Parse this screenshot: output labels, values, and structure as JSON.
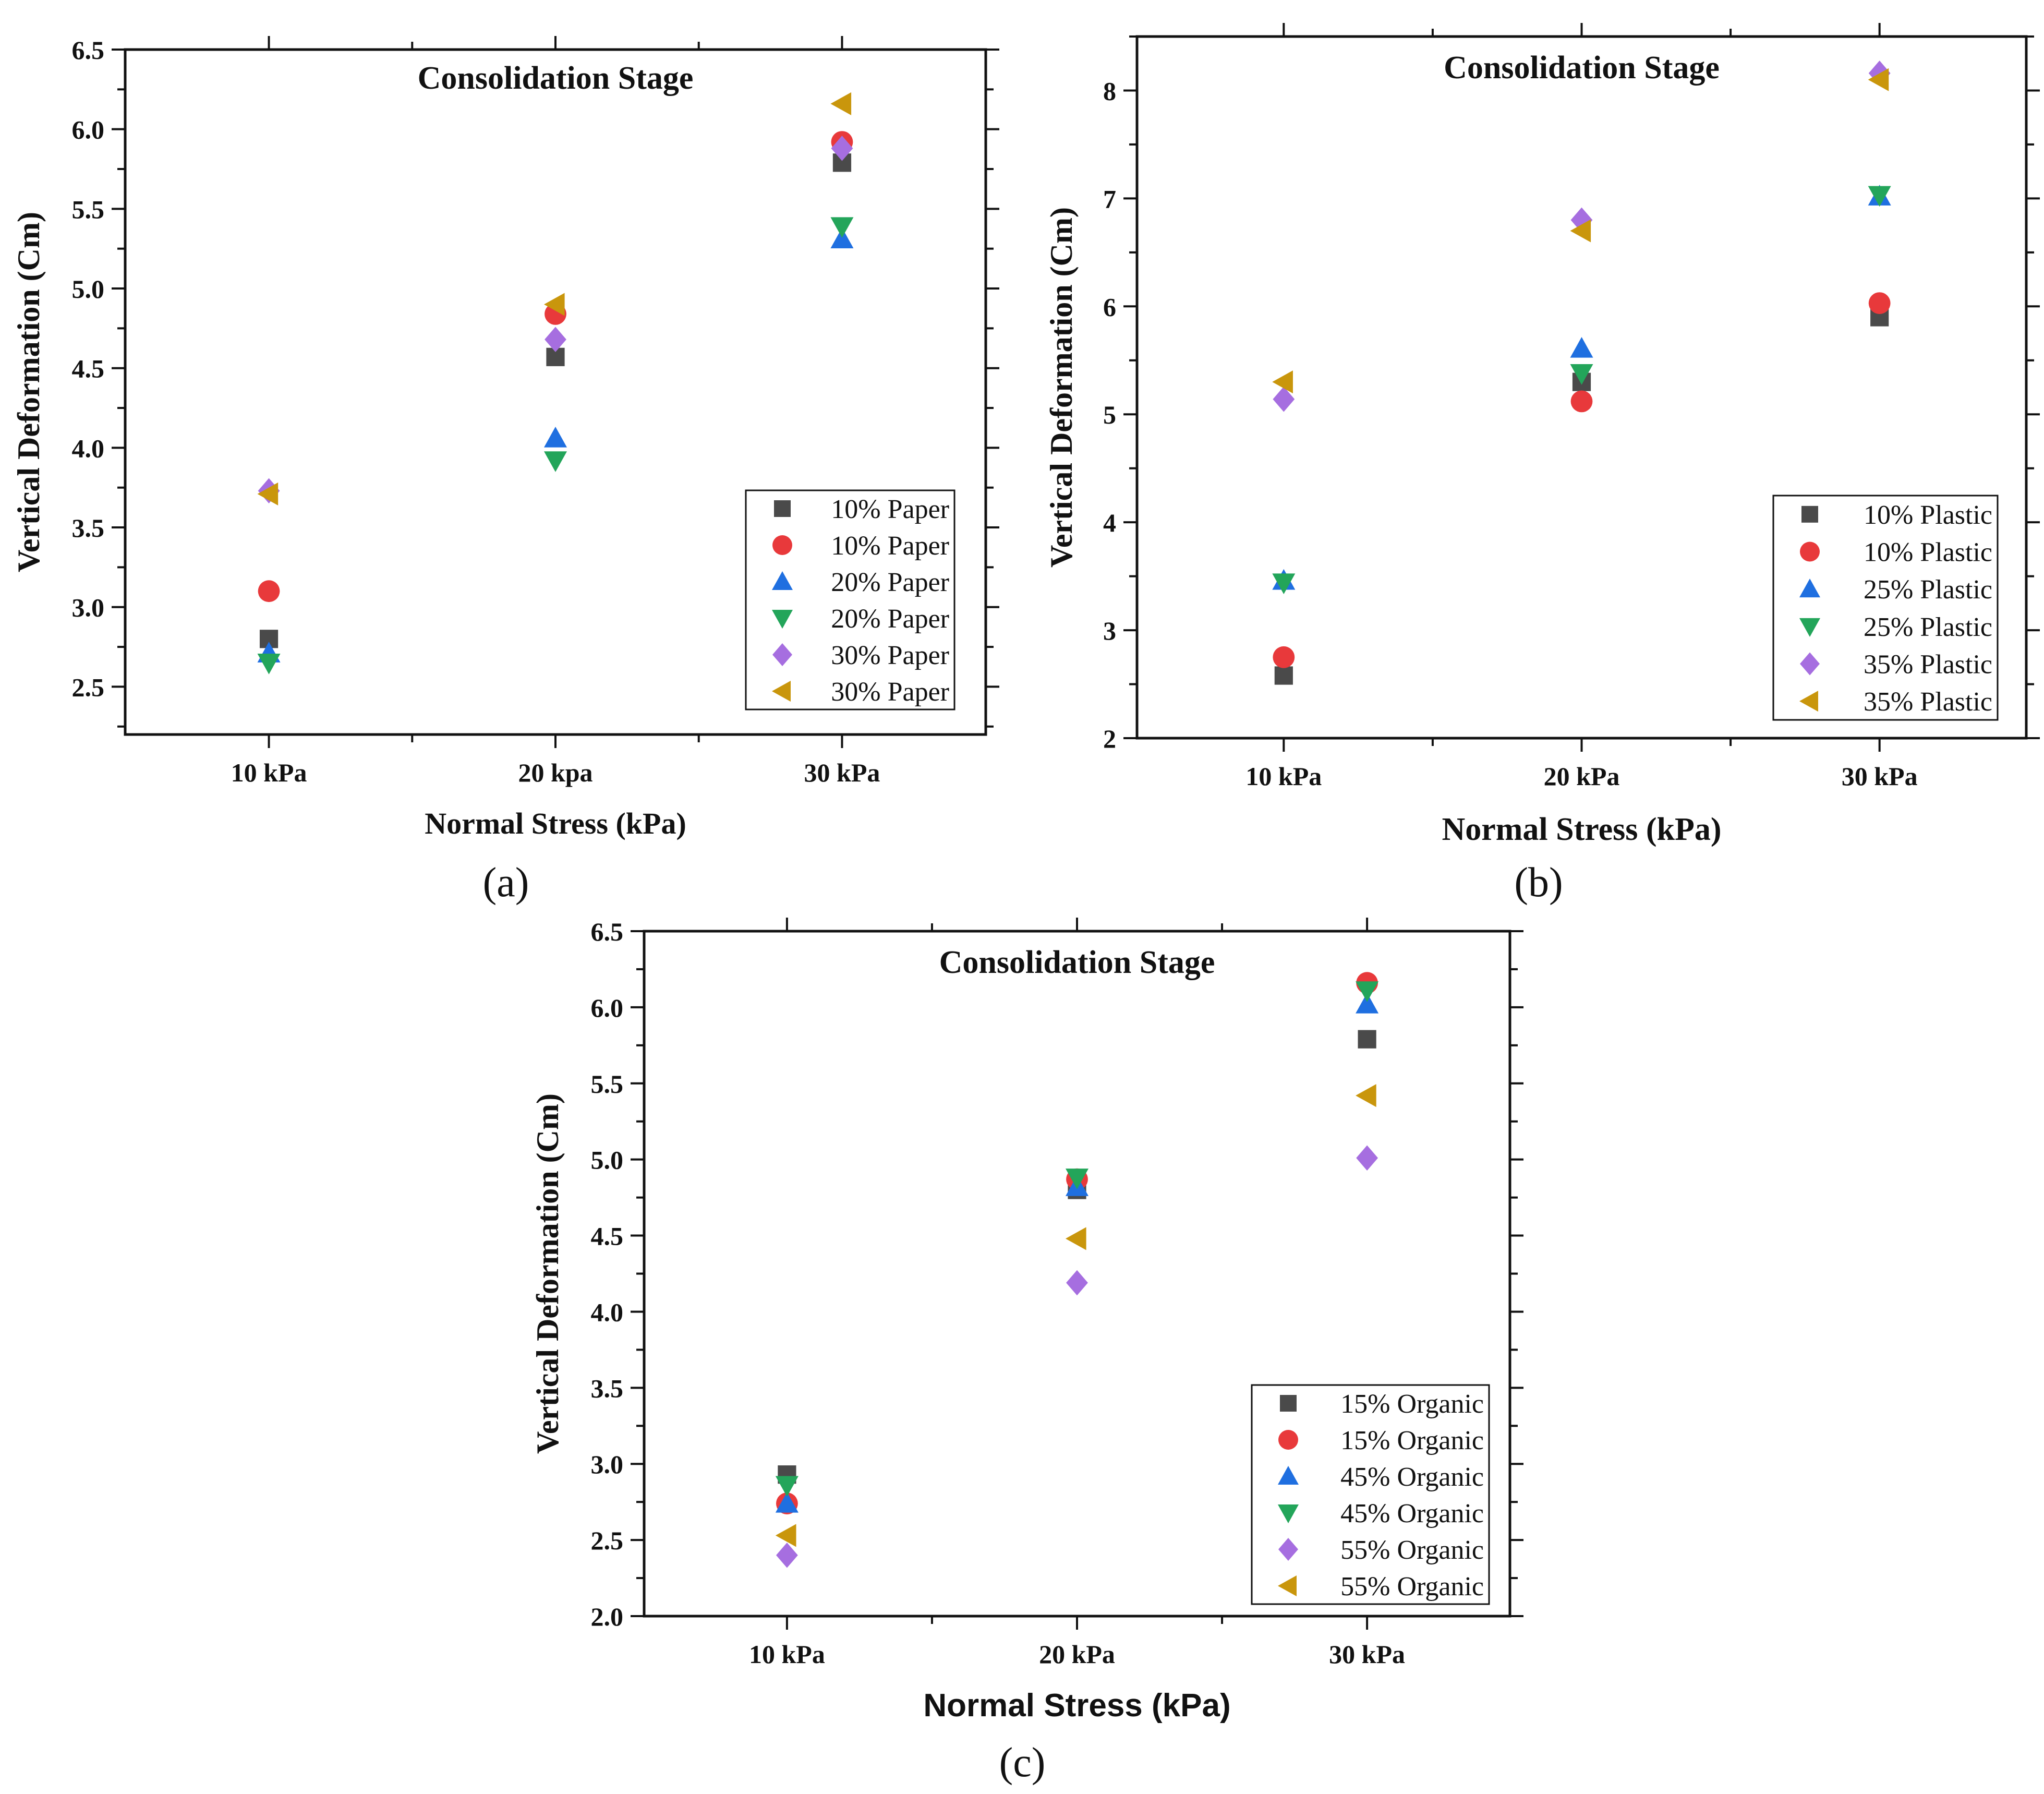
{
  "figure": {
    "panels": [
      {
        "caption": "(a)"
      },
      {
        "caption": "(b)"
      },
      {
        "caption": "(c)"
      }
    ]
  },
  "colors": {
    "square": "#4a4a4a",
    "circle": "#e8393b",
    "triangle-up": "#1f6fe0",
    "triangle-down": "#23a55a",
    "diamond": "#a66ee0",
    "triangle-left": "#c9960c"
  },
  "chart_data": [
    {
      "type": "scatter",
      "title": "Consolidation Stage",
      "xlabel": "Normal Stress (kPa)",
      "ylabel": "Vertical Deformation (Cm)",
      "categories": [
        "10 kPa",
        "20 kpa",
        "30 kPa"
      ],
      "ylim": [
        2.2,
        6.5
      ],
      "yticks": [
        "2.5",
        "3.0",
        "3.5",
        "4.0",
        "4.5",
        "5.0",
        "5.5",
        "6.0",
        "6.5"
      ],
      "grid": false,
      "legend": "bottom-right",
      "series": [
        {
          "name": "10% Paper",
          "marker": "square",
          "values": [
            2.8,
            4.57,
            5.79
          ]
        },
        {
          "name": "10% Paper",
          "marker": "circle",
          "values": [
            3.1,
            4.84,
            5.92
          ]
        },
        {
          "name": "20% Paper",
          "marker": "triangle-up",
          "values": [
            2.71,
            4.06,
            5.31
          ]
        },
        {
          "name": "20% Paper",
          "marker": "triangle-down",
          "values": [
            2.65,
            3.92,
            5.39
          ]
        },
        {
          "name": "30% Paper",
          "marker": "diamond",
          "values": [
            3.73,
            4.68,
            5.88
          ]
        },
        {
          "name": "30% Paper",
          "marker": "triangle-left",
          "values": [
            3.71,
            4.9,
            6.16
          ]
        }
      ]
    },
    {
      "type": "scatter",
      "title": "Consolidation Stage",
      "xlabel": "Normal Stress (kPa)",
      "ylabel": "Vertical Deformation (Cm)",
      "categories": [
        "10 kPa",
        "20 kPa",
        "30 kPa"
      ],
      "ylim": [
        2.0,
        8.5
      ],
      "yticks": [
        "2",
        "3",
        "4",
        "5",
        "6",
        "7",
        "8"
      ],
      "grid": false,
      "legend": "bottom-right",
      "series": [
        {
          "name": "10% Plastic",
          "marker": "square",
          "values": [
            2.58,
            5.3,
            5.9
          ]
        },
        {
          "name": "10% Plastic",
          "marker": "circle",
          "values": [
            2.75,
            5.12,
            6.03
          ]
        },
        {
          "name": "25% Plastic",
          "marker": "triangle-up",
          "values": [
            3.46,
            5.61,
            7.02
          ]
        },
        {
          "name": "25% Plastic",
          "marker": "triangle-down",
          "values": [
            3.44,
            5.38,
            7.03
          ]
        },
        {
          "name": "35% Plastic",
          "marker": "diamond",
          "values": [
            5.14,
            6.8,
            8.16
          ]
        },
        {
          "name": "35% Plastic",
          "marker": "triangle-left",
          "values": [
            5.3,
            6.7,
            8.1
          ]
        }
      ]
    },
    {
      "type": "scatter",
      "title": "Consolidation Stage",
      "xlabel": "Normal Stress (kPa)",
      "ylabel": "Vertical Deformation (Cm)",
      "categories": [
        "10 kPa",
        "20 kPa",
        "30 kPa"
      ],
      "ylim": [
        2.0,
        6.5
      ],
      "yticks": [
        "2.0",
        "2.5",
        "3.0",
        "3.5",
        "4.0",
        "4.5",
        "5.0",
        "5.5",
        "6.0",
        "6.5"
      ],
      "grid": false,
      "legend": "bottom-right",
      "series": [
        {
          "name": "15% Organic",
          "marker": "square",
          "values": [
            2.93,
            4.8,
            5.79
          ]
        },
        {
          "name": "15% Organic",
          "marker": "circle",
          "values": [
            2.74,
            4.87,
            6.16
          ]
        },
        {
          "name": "45% Organic",
          "marker": "triangle-up",
          "values": [
            2.74,
            4.82,
            6.02
          ]
        },
        {
          "name": "45% Organic",
          "marker": "triangle-down",
          "values": [
            2.86,
            4.88,
            6.11
          ]
        },
        {
          "name": "55% Organic",
          "marker": "diamond",
          "values": [
            2.4,
            4.19,
            5.01
          ]
        },
        {
          "name": "55% Organic",
          "marker": "triangle-left",
          "values": [
            2.53,
            4.48,
            5.42
          ]
        }
      ]
    }
  ]
}
